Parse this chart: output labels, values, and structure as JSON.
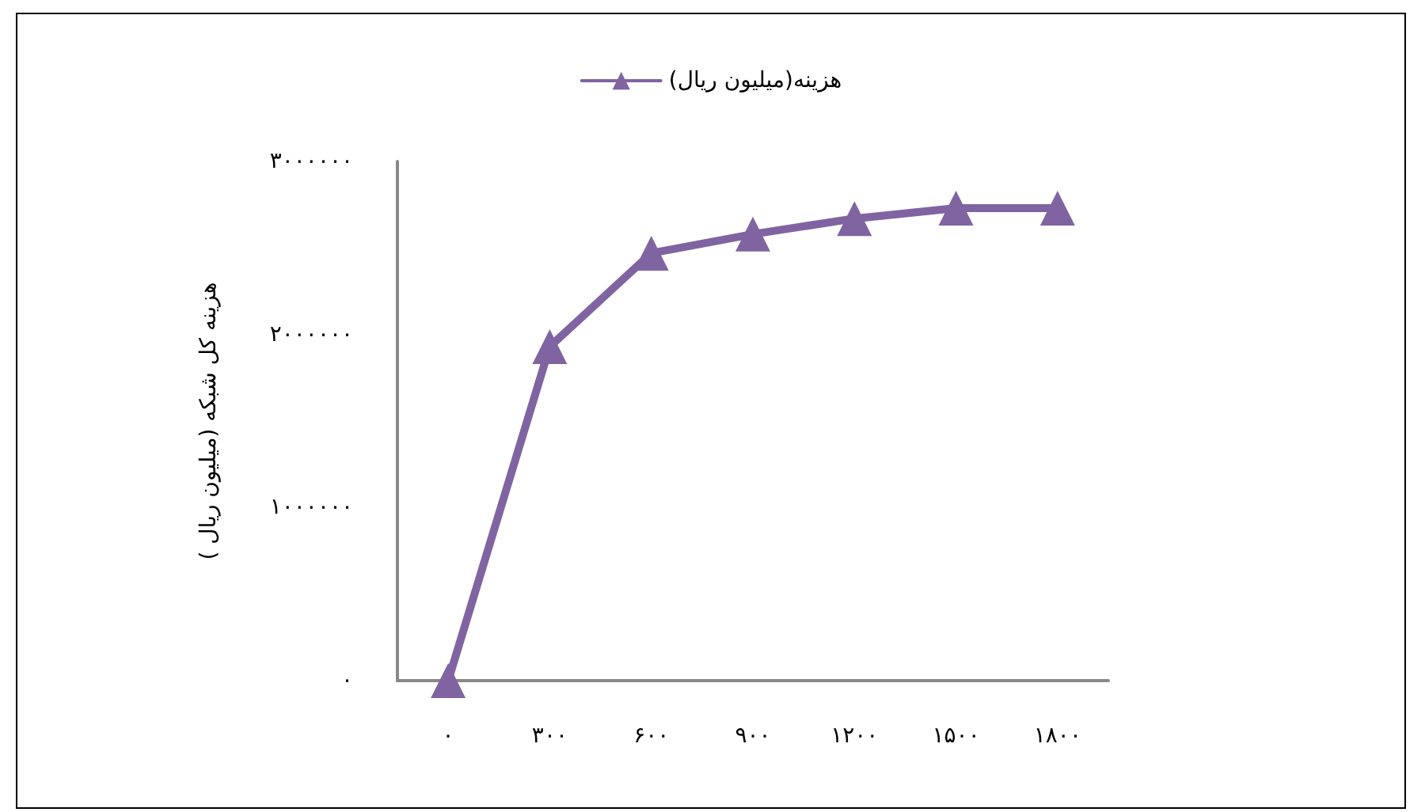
{
  "chart_data": {
    "type": "line",
    "ylabel": "هزینه کل شبکه (میلیون ریال )",
    "categories": [
      "۰",
      "۳۰۰",
      "۶۰۰",
      "۹۰۰",
      "۱۲۰۰",
      "۱۵۰۰",
      "۱۸۰۰"
    ],
    "series": [
      {
        "name": "(میلیون ریال)هزینه",
        "color": "#8064a2",
        "values": [
          0,
          1930000,
          2470000,
          2580000,
          2670000,
          2730000,
          2730000
        ]
      }
    ],
    "ylim": [
      0,
      3000000
    ],
    "yticks": [
      {
        "value": 0,
        "label": "۰"
      },
      {
        "value": 1000000,
        "label": "۱۰۰۰۰۰۰"
      },
      {
        "value": 2000000,
        "label": "۲۰۰۰۰۰۰"
      },
      {
        "value": 3000000,
        "label": "۳۰۰۰۰۰۰"
      }
    ],
    "grid": false,
    "legend": "top",
    "marker": "triangle",
    "line_style": "solid"
  }
}
